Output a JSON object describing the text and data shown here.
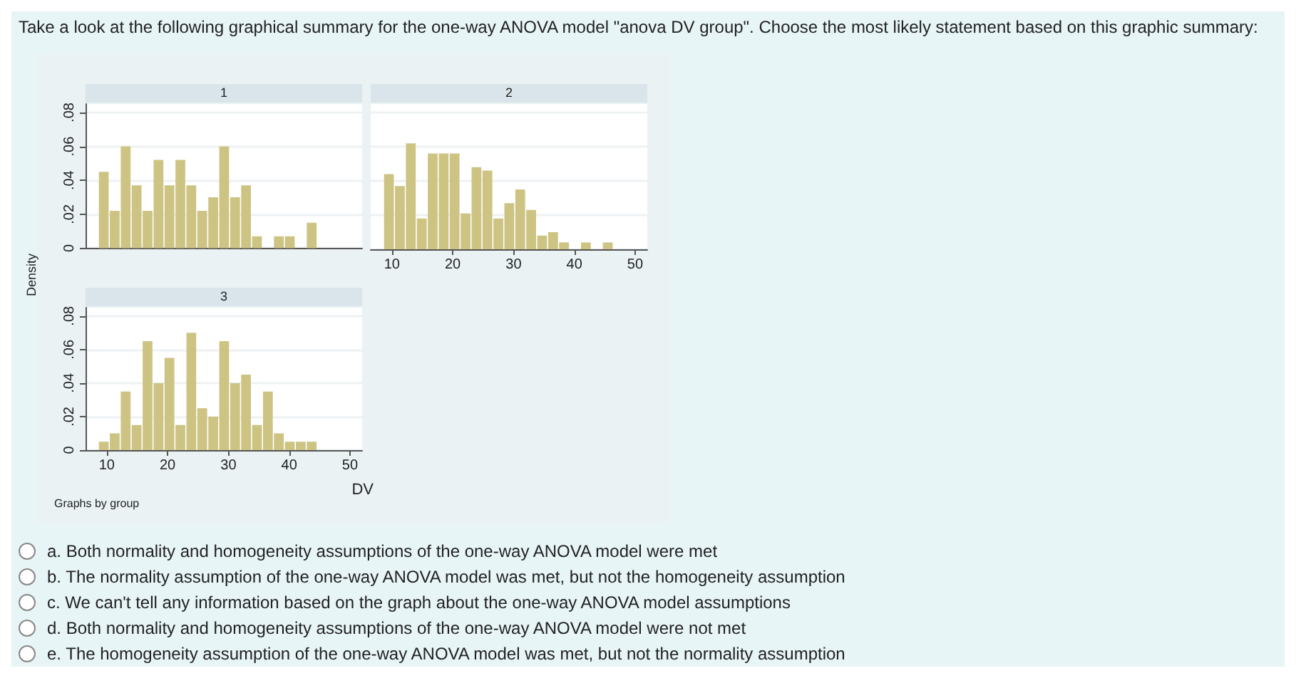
{
  "chart_data": [
    {
      "type": "histogram",
      "title": "1",
      "color": "#cdc483",
      "bins": [
        8.6,
        10.4,
        12.2,
        14,
        15.8,
        17.6,
        19.4,
        21.2,
        23,
        24.8,
        26.6,
        28.4,
        30.2,
        32,
        33.8,
        35.6,
        37.4,
        39.2,
        41,
        42.8,
        44.6,
        46.4
      ],
      "values": [
        0.045,
        0.022,
        0.06,
        0.037,
        0.022,
        0.052,
        0.037,
        0.052,
        0.037,
        0.022,
        0.03,
        0.06,
        0.03,
        0.037,
        0.007,
        0,
        0.007,
        0.007,
        0,
        0.015,
        0
      ],
      "xlim": [
        6.5,
        52
      ],
      "xticks": [
        10,
        20,
        30,
        40,
        50
      ],
      "ylim": [
        0,
        0.085
      ],
      "yticks": [
        0,
        {
          "value": 0.02,
          "label": ".02"
        },
        {
          "value": 0.04,
          "label": ".04"
        },
        {
          "value": 0.06,
          "label": ".06"
        },
        {
          "value": 0.08,
          "label": ".08"
        }
      ],
      "grid": "y",
      "tick_labels": "y",
      "annotations": [
        "Take a look at the following graphical summary for the one-way ANOVA model \"anova DV group\". Choose the most likely statement based on this graphic summary:",
        "a. Both normality and homogeneity assumptions of the one-way ANOVA model were met",
        "b. The normality assumption of the one-way ANOVA model was met, but not the homogeneity assumption",
        "c. We can't tell any information based on the graph about the one-way ANOVA model assumptions",
        "d. Both normality and homogeneity assumptions of the one-way ANOVA model were not met",
        "e. The homogeneity assumption of the one-way ANOVA model was met, but not the normality assumption"
      ]
    },
    {
      "type": "histogram",
      "title": "2",
      "color": "#cdc483",
      "bins": [
        8.6,
        10.4,
        12.2,
        14,
        15.8,
        17.6,
        19.4,
        21.2,
        23,
        24.8,
        26.6,
        28.4,
        30.2,
        32,
        33.8,
        35.6,
        37.4,
        39.2,
        41,
        42.8,
        44.6,
        46.4
      ],
      "values": [
        0.044,
        0.037,
        0.062,
        0.018,
        0.056,
        0.056,
        0.056,
        0.021,
        0.048,
        0.046,
        0.018,
        0.027,
        0.035,
        0.023,
        0.008,
        0.01,
        0.004,
        0,
        0.004,
        0,
        0.004
      ],
      "xlim": [
        6.5,
        52
      ],
      "xticks": [
        10,
        20,
        30,
        40,
        50
      ],
      "ylim": [
        0,
        0.085
      ],
      "yticks": [
        0,
        0.02,
        0.04,
        0.06,
        0.08
      ],
      "grid": "y",
      "tick_labels": "x"
    },
    {
      "type": "histogram",
      "title": "3",
      "color": "#cdc483",
      "xlabel": "DV",
      "ylabel": "Density",
      "bins": [
        8.6,
        10.4,
        12.2,
        14,
        15.8,
        17.6,
        19.4,
        21.2,
        23,
        24.8,
        26.6,
        28.4,
        30.2,
        32,
        33.8,
        35.6,
        37.4,
        39.2,
        41,
        42.8,
        44.6,
        46.4
      ],
      "values": [
        0.005,
        0.01,
        0.035,
        0.015,
        0.065,
        0.04,
        0.055,
        0.015,
        0.07,
        0.025,
        0.02,
        0.065,
        0.04,
        0.045,
        0.015,
        0.035,
        0.01,
        0.005,
        0.005,
        0.005,
        0
      ],
      "xlim": [
        6.5,
        52
      ],
      "xticks": [
        10,
        20,
        30,
        40,
        50
      ],
      "ylim": [
        0,
        0.085
      ],
      "yticks": [
        0,
        {
          "value": 0.02,
          "label": ".02"
        },
        {
          "value": 0.04,
          "label": ".04"
        },
        {
          "value": 0.06,
          "label": ".06"
        },
        {
          "value": 0.08,
          "label": ".08"
        }
      ],
      "grid": "y",
      "annotations": [
        "Graphs by group"
      ]
    }
  ]
}
